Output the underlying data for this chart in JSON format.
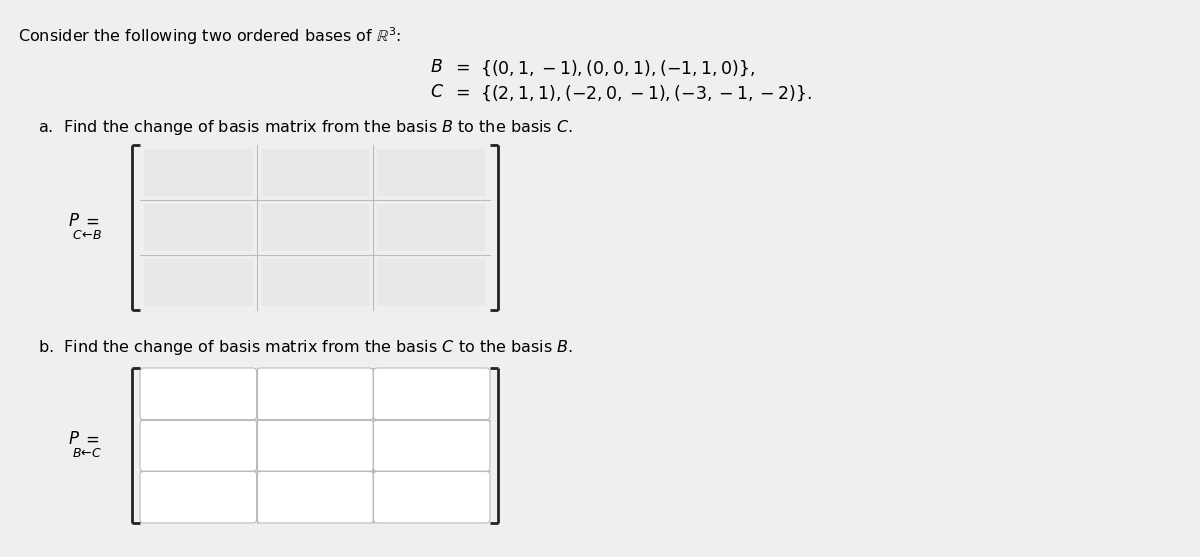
{
  "bg_color": "#efefef",
  "panel_bg": "#efefef",
  "title_text": "Consider the following two ordered bases of $\\mathbb{R}^3$:",
  "title_fontsize": 11.5,
  "B_line": "$\\mathbf{\\mathit{B}}\\;\\;=\\;\\;\\{(0, 1, -1), (0, 0, 1), (-1, 1, 0)\\},$",
  "C_line": "$\\mathbf{\\mathit{C}}\\;\\;=\\;\\;\\{(2, 1, 1), (-2, 0, -1), (-3, -1, -2)\\}.$",
  "lines_fontsize": 12.5,
  "part_a_text": "a.  Find the change of basis matrix from the basis $\\mathit{B}$ to the basis $\\mathit{C}$.",
  "part_b_text": "b.  Find the change of basis matrix from the basis $\\mathit{C}$ to the basis $\\mathit{B}$.",
  "parts_fontsize": 11.5,
  "cell_color": "#ffffff",
  "cell_color_a": "#e8e8e8",
  "bracket_color": "#222222",
  "separator_color": "#bbbbbb",
  "label_fontsize_P": 12,
  "label_fontsize_sub": 9
}
